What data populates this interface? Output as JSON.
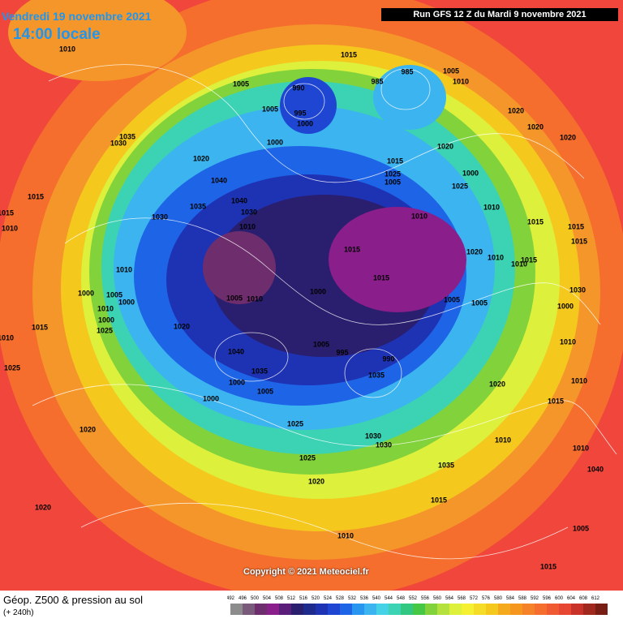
{
  "header": {
    "date": "Vendredi 19 novembre 2021",
    "time": "14:00 locale",
    "run": "Run GFS 12 Z du Mardi 9 novembre 2021"
  },
  "footer": {
    "title": "Géop. Z500 & pression au sol",
    "lead": "(+ 240h)",
    "copyright": "Copyright © 2021 Meteociel.fr"
  },
  "legend": {
    "levels": [
      492,
      496,
      500,
      504,
      508,
      512,
      516,
      520,
      524,
      528,
      532,
      536,
      540,
      544,
      548,
      552,
      556,
      560,
      564,
      568,
      572,
      576,
      580,
      584,
      588,
      592,
      596,
      600,
      604,
      608,
      612
    ],
    "colors": [
      "#8c8c8c",
      "#7a5a7a",
      "#6e2e6e",
      "#8a1e8a",
      "#5a1e7a",
      "#2a1e6e",
      "#1e2a8c",
      "#1e32b4",
      "#1e46d2",
      "#1e64e6",
      "#2896f0",
      "#3cb4f0",
      "#46d2e6",
      "#3cd2b4",
      "#32c882",
      "#46c846",
      "#82d23c",
      "#b4e13c",
      "#dcf03c",
      "#f5f032",
      "#f5dc28",
      "#f5c81e",
      "#f5aa1e",
      "#f5961e",
      "#f58228",
      "#f56e2d",
      "#f05a32",
      "#e64632",
      "#c83228",
      "#a0281e",
      "#781e14"
    ]
  },
  "isobar_labels": [
    "1010",
    "1015",
    "1005",
    "990",
    "995",
    "1005",
    "1000",
    "985",
    "985",
    "1005",
    "1010",
    "1020",
    "1020",
    "1020",
    "1035",
    "1030",
    "1000",
    "1020",
    "1015",
    "1020",
    "1025",
    "1005",
    "1000",
    "1025",
    "1040",
    "1040",
    "1035",
    "1030",
    "1030",
    "1010",
    "1010",
    "1010",
    "1015",
    "1015",
    "1015",
    "1015",
    "1015",
    "1010",
    "1015",
    "1020",
    "1010",
    "1010",
    "1015",
    "1015",
    "1000",
    "1010",
    "1000",
    "1005",
    "1000",
    "1010",
    "1005",
    "1010",
    "1005",
    "1005",
    "1030",
    "1000",
    "1000",
    "1025",
    "1020",
    "1015",
    "1010",
    "1005",
    "995",
    "990",
    "1035",
    "1040",
    "1035",
    "1020",
    "1010",
    "1000",
    "1000",
    "1005",
    "1010",
    "1015",
    "1025",
    "1020",
    "1025",
    "1030",
    "1030",
    "1010",
    "1010",
    "1040",
    "1025",
    "1035",
    "1020",
    "1015",
    "1020",
    "1010",
    "1005",
    "1015"
  ]
}
